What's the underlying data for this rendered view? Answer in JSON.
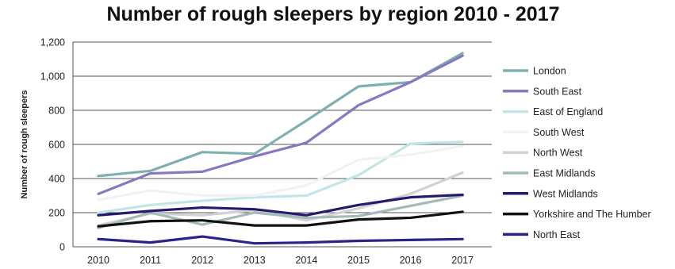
{
  "chart_data": {
    "type": "line",
    "title": "Number of rough sleepers by region 2010 - 2017",
    "ylabel": "Number of rough sleepers",
    "xlabel": "",
    "x": [
      "2010",
      "2011",
      "2012",
      "2013",
      "2014",
      "2015",
      "2016",
      "2017"
    ],
    "ylim": [
      0,
      1200
    ],
    "yticks": [
      0,
      200,
      400,
      600,
      800,
      1000,
      1200
    ],
    "ytick_labels": [
      "0",
      "200",
      "400",
      "600",
      "800",
      "1,000",
      "1,200"
    ],
    "grid": "horizontal",
    "legend_position": "right",
    "series": [
      {
        "name": "London",
        "color": "#7fb0b0",
        "values": [
          415,
          445,
          555,
          545,
          740,
          940,
          965,
          1135
        ]
      },
      {
        "name": "South East",
        "color": "#8878c0",
        "values": [
          310,
          430,
          440,
          530,
          610,
          830,
          965,
          1120
        ]
      },
      {
        "name": "East of England",
        "color": "#c2e6e6",
        "values": [
          200,
          245,
          270,
          290,
          300,
          420,
          605,
          615
        ]
      },
      {
        "name": "South West",
        "color": "#f2f2f2",
        "values": [
          275,
          330,
          300,
          300,
          360,
          510,
          540,
          590
        ]
      },
      {
        "name": "North West",
        "color": "#d2d2d2",
        "values": [
          125,
          195,
          185,
          215,
          155,
          225,
          310,
          435
        ]
      },
      {
        "name": "East Midlands",
        "color": "#a3baba",
        "values": [
          110,
          200,
          130,
          200,
          170,
          180,
          240,
          300
        ]
      },
      {
        "name": "West Midlands",
        "color": "#241a6e",
        "values": [
          185,
          210,
          230,
          220,
          185,
          245,
          290,
          305
        ]
      },
      {
        "name": "Yorkshire and The Humber",
        "color": "#111111",
        "values": [
          120,
          150,
          155,
          125,
          125,
          160,
          170,
          205
        ]
      },
      {
        "name": "North East",
        "color": "#2a238a",
        "values": [
          45,
          25,
          60,
          20,
          25,
          35,
          40,
          45
        ]
      }
    ]
  }
}
